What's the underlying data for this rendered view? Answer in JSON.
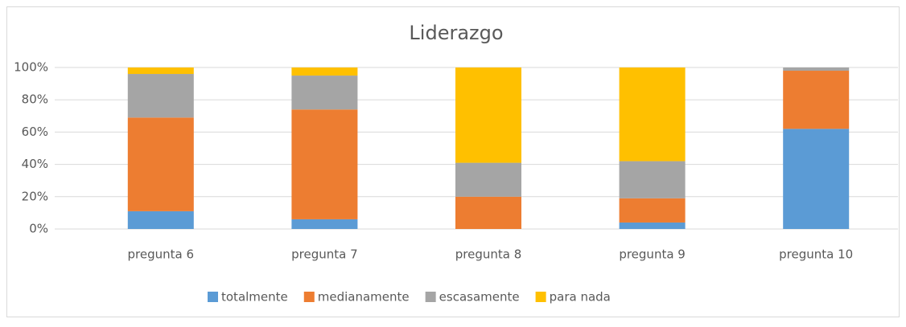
{
  "chart_data": {
    "type": "stacked_bar",
    "title": "Liderazgo",
    "categories": [
      "pregunta 6",
      "pregunta 7",
      "pregunta 8",
      "pregunta 9",
      "pregunta 10"
    ],
    "series": [
      {
        "name": "totalmente",
        "color": "#5b9bd5",
        "values": [
          11,
          6,
          0,
          4,
          62
        ]
      },
      {
        "name": "medianamente",
        "color": "#ed7d31",
        "values": [
          58,
          68,
          20,
          15,
          36
        ]
      },
      {
        "name": "escasamente",
        "color": "#a5a5a5",
        "values": [
          27,
          21,
          21,
          23,
          2
        ]
      },
      {
        "name": "para nada",
        "color": "#ffc000",
        "values": [
          4,
          5,
          59,
          58,
          0
        ]
      }
    ],
    "ylim": [
      0,
      100
    ],
    "yticks": [
      {
        "value": 0,
        "label": "0%"
      },
      {
        "value": 20,
        "label": "20%"
      },
      {
        "value": 40,
        "label": "40%"
      },
      {
        "value": 60,
        "label": "60%"
      },
      {
        "value": 80,
        "label": "80%"
      },
      {
        "value": 100,
        "label": "100%"
      }
    ],
    "grid": true,
    "legend": "bottom"
  }
}
